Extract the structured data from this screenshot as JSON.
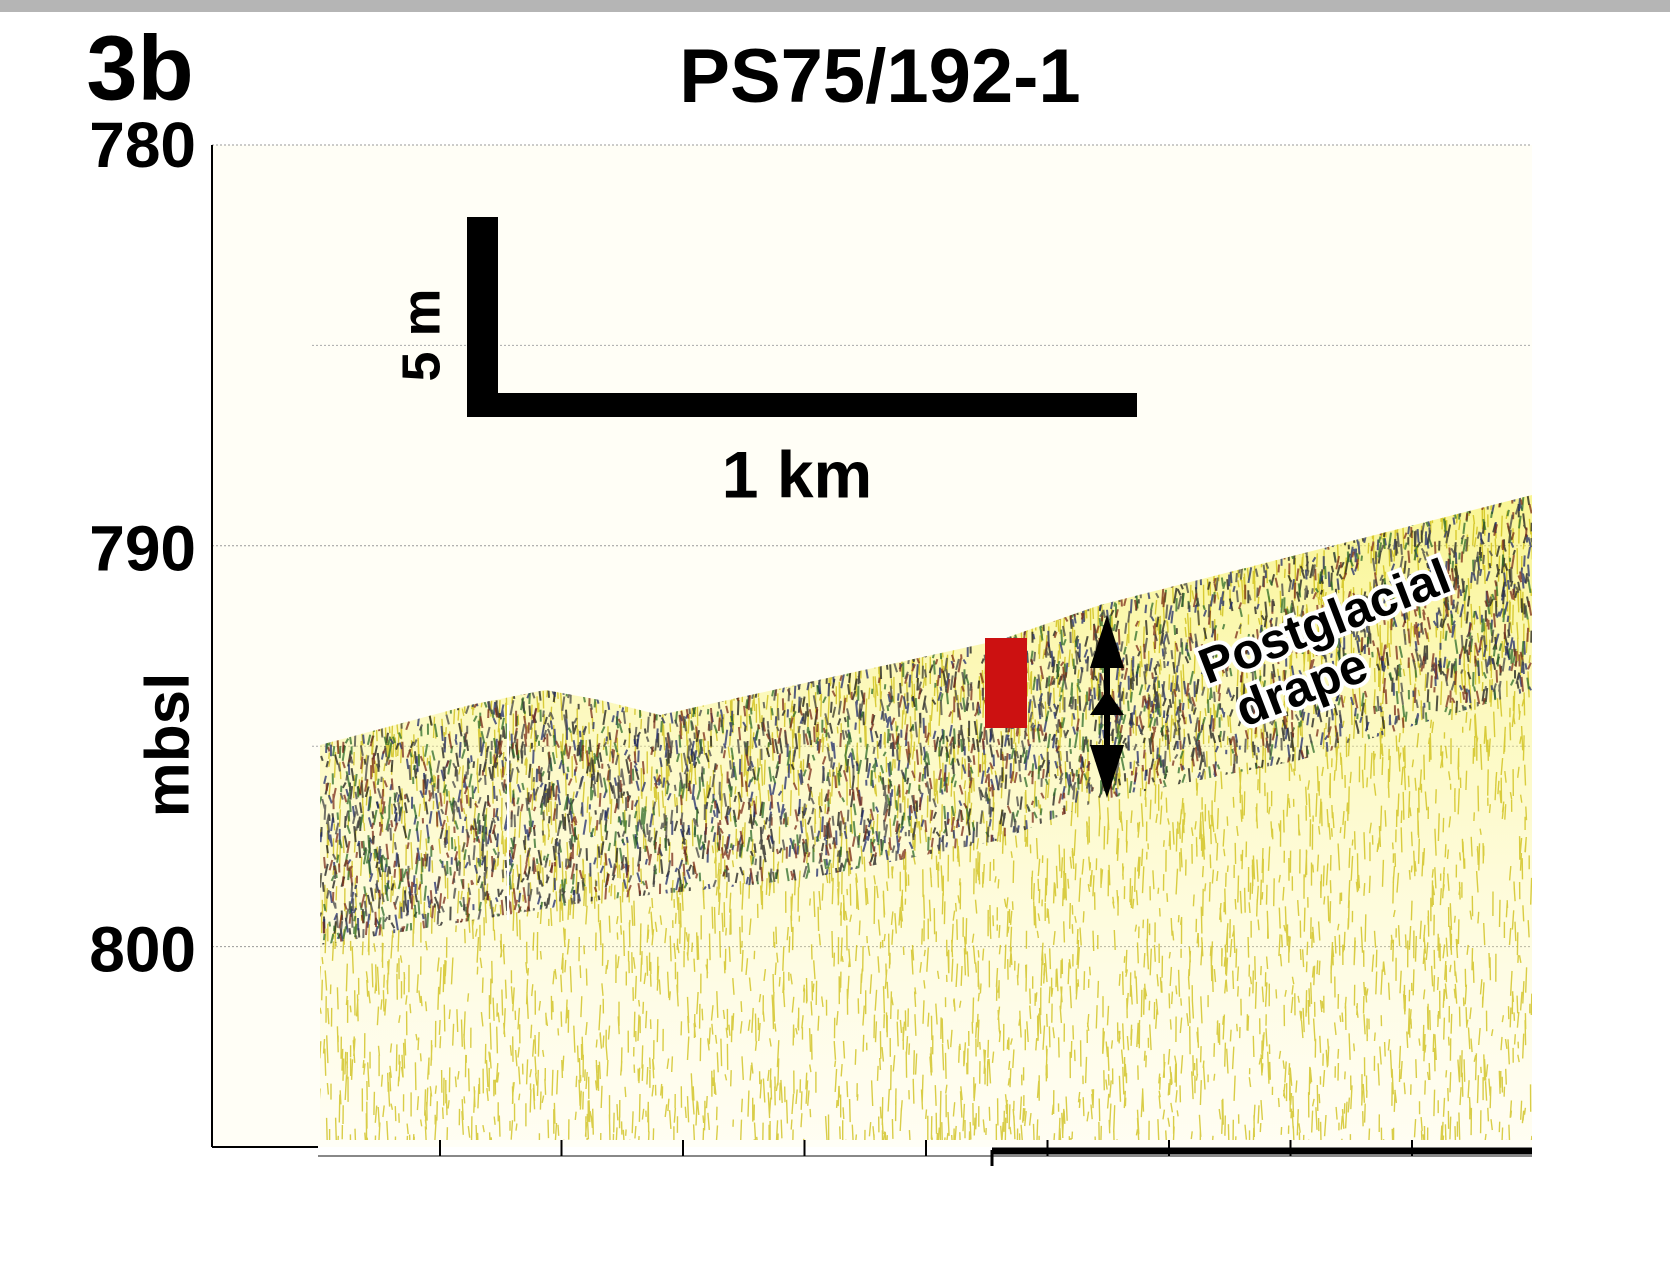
{
  "chart_data": {
    "type": "profile",
    "panel_label": "3b",
    "title": "PS75/192-1",
    "y_label": "mbsl",
    "ylim": [
      780,
      805
    ],
    "yticks": [
      780,
      790,
      800
    ],
    "grid": true,
    "scale_bar": {
      "vertical": "5 m",
      "horizontal": "1 km"
    },
    "annotation": [
      "Postglacial",
      "drape"
    ]
  }
}
